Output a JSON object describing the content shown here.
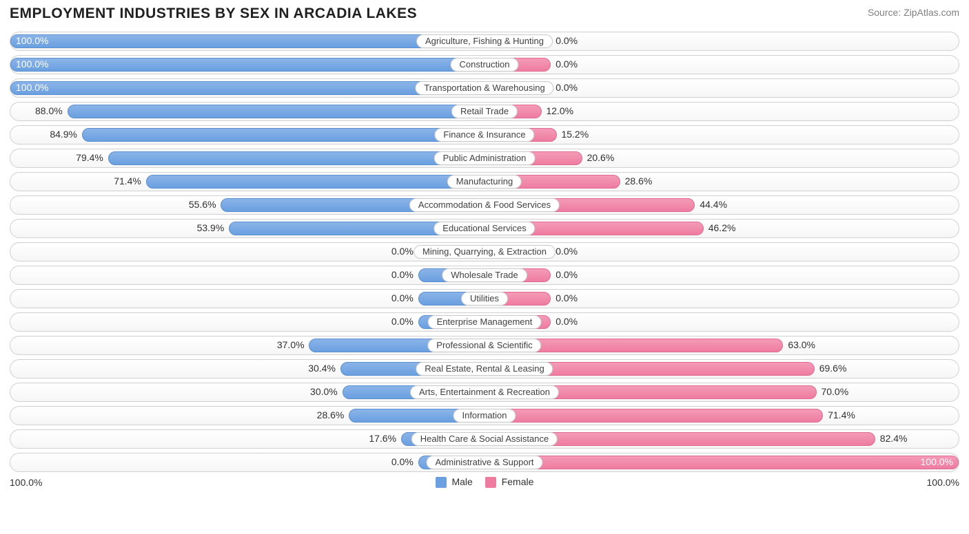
{
  "title": "EMPLOYMENT INDUSTRIES BY SEX IN ARCADIA LAKES",
  "source": "Source: ZipAtlas.com",
  "chart": {
    "type": "diverging-bar",
    "axis_min_label": "100.0%",
    "axis_max_label": "100.0%",
    "legend_male": "Male",
    "legend_female": "Female",
    "male_color": "#6a9fe0",
    "female_color": "#ee7ca1",
    "row_border_color": "#d0d0d0",
    "background_color": "#ffffff",
    "label_border_color": "#c8c8c8",
    "null_bar_extent_pct": 14,
    "rows": [
      {
        "label": "Agriculture, Fishing & Hunting",
        "male": 100.0,
        "female": 0.0,
        "male_txt": "100.0%",
        "female_txt": "0.0%"
      },
      {
        "label": "Construction",
        "male": 100.0,
        "female": 0.0,
        "male_txt": "100.0%",
        "female_txt": "0.0%"
      },
      {
        "label": "Transportation & Warehousing",
        "male": 100.0,
        "female": 0.0,
        "male_txt": "100.0%",
        "female_txt": "0.0%"
      },
      {
        "label": "Retail Trade",
        "male": 88.0,
        "female": 12.0,
        "male_txt": "88.0%",
        "female_txt": "12.0%"
      },
      {
        "label": "Finance & Insurance",
        "male": 84.9,
        "female": 15.2,
        "male_txt": "84.9%",
        "female_txt": "15.2%"
      },
      {
        "label": "Public Administration",
        "male": 79.4,
        "female": 20.6,
        "male_txt": "79.4%",
        "female_txt": "20.6%"
      },
      {
        "label": "Manufacturing",
        "male": 71.4,
        "female": 28.6,
        "male_txt": "71.4%",
        "female_txt": "28.6%"
      },
      {
        "label": "Accommodation & Food Services",
        "male": 55.6,
        "female": 44.4,
        "male_txt": "55.6%",
        "female_txt": "44.4%"
      },
      {
        "label": "Educational Services",
        "male": 53.9,
        "female": 46.2,
        "male_txt": "53.9%",
        "female_txt": "46.2%"
      },
      {
        "label": "Mining, Quarrying, & Extraction",
        "male": 0.0,
        "female": 0.0,
        "male_txt": "0.0%",
        "female_txt": "0.0%",
        "null_row": true
      },
      {
        "label": "Wholesale Trade",
        "male": 0.0,
        "female": 0.0,
        "male_txt": "0.0%",
        "female_txt": "0.0%",
        "null_row": true
      },
      {
        "label": "Utilities",
        "male": 0.0,
        "female": 0.0,
        "male_txt": "0.0%",
        "female_txt": "0.0%",
        "null_row": true
      },
      {
        "label": "Enterprise Management",
        "male": 0.0,
        "female": 0.0,
        "male_txt": "0.0%",
        "female_txt": "0.0%",
        "null_row": true
      },
      {
        "label": "Professional & Scientific",
        "male": 37.0,
        "female": 63.0,
        "male_txt": "37.0%",
        "female_txt": "63.0%"
      },
      {
        "label": "Real Estate, Rental & Leasing",
        "male": 30.4,
        "female": 69.6,
        "male_txt": "30.4%",
        "female_txt": "69.6%"
      },
      {
        "label": "Arts, Entertainment & Recreation",
        "male": 30.0,
        "female": 70.0,
        "male_txt": "30.0%",
        "female_txt": "70.0%"
      },
      {
        "label": "Information",
        "male": 28.6,
        "female": 71.4,
        "male_txt": "28.6%",
        "female_txt": "71.4%"
      },
      {
        "label": "Health Care & Social Assistance",
        "male": 17.6,
        "female": 82.4,
        "male_txt": "17.6%",
        "female_txt": "82.4%"
      },
      {
        "label": "Administrative & Support",
        "male": 0.0,
        "female": 100.0,
        "male_txt": "0.0%",
        "female_txt": "100.0%"
      }
    ]
  }
}
